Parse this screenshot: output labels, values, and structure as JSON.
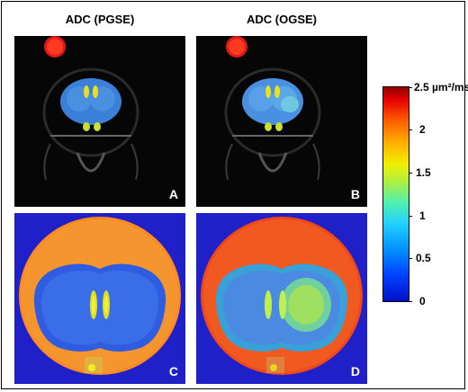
{
  "columns": {
    "left_title": "ADC (PGSE)",
    "right_title": "ADC (OGSE)"
  },
  "panels": {
    "a": "A",
    "b": "B",
    "c": "C",
    "d": "D"
  },
  "colorbar": {
    "unit": "µm²/ms",
    "ticks": [
      "2.5",
      "2",
      "1.5",
      "1",
      "0.5",
      "0"
    ],
    "range": [
      0,
      2.5
    ]
  }
}
